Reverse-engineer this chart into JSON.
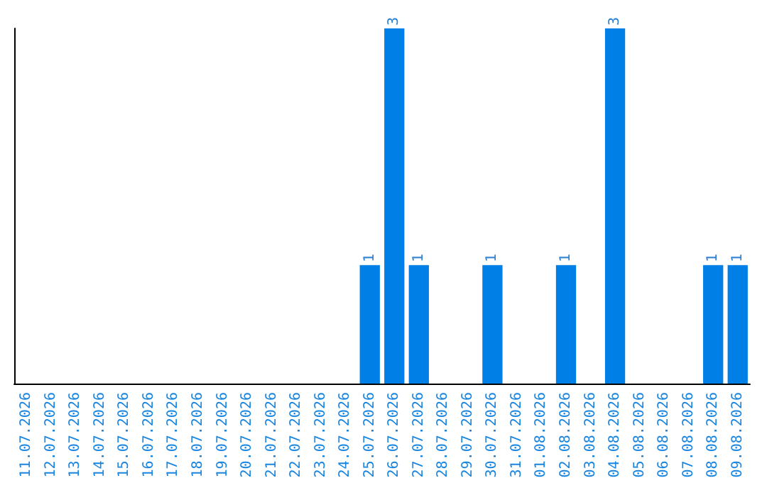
{
  "chart_data": {
    "type": "bar",
    "categories": [
      "11.07.2026",
      "12.07.2026",
      "13.07.2026",
      "14.07.2026",
      "15.07.2026",
      "16.07.2026",
      "17.07.2026",
      "18.07.2026",
      "19.07.2026",
      "20.07.2026",
      "21.07.2026",
      "22.07.2026",
      "23.07.2026",
      "24.07.2026",
      "25.07.2026",
      "26.07.2026",
      "27.07.2026",
      "28.07.2026",
      "29.07.2026",
      "30.07.2026",
      "31.07.2026",
      "01.08.2026",
      "02.08.2026",
      "03.08.2026",
      "04.08.2026",
      "05.08.2026",
      "06.08.2026",
      "07.08.2026",
      "08.08.2026",
      "09.08.2026"
    ],
    "values": [
      null,
      null,
      null,
      null,
      null,
      null,
      null,
      null,
      null,
      null,
      null,
      null,
      null,
      null,
      1,
      3,
      1,
      null,
      null,
      1,
      null,
      null,
      1,
      null,
      3,
      null,
      null,
      null,
      1,
      1
    ],
    "data_labels": true,
    "color": "#0080e6",
    "tick_labels": "x"
  }
}
